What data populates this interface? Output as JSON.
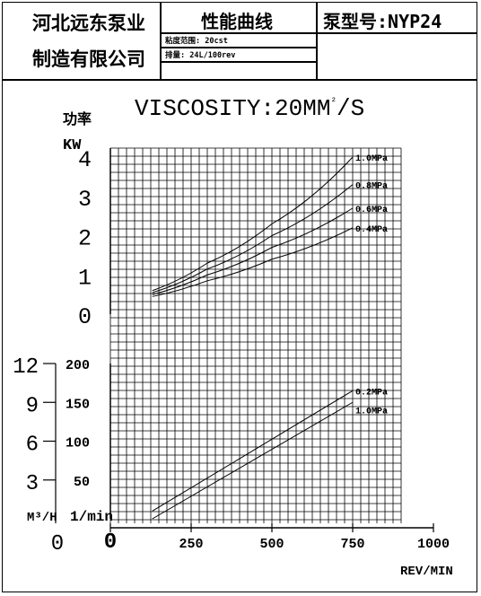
{
  "header": {
    "company_line1": "河北远东泵业",
    "company_line2": "制造有限公司",
    "chart_name": "性能曲线",
    "viscosity_range": "粘度范围: 20cst",
    "displacement": "排量: 24L/100rev",
    "model": "泵型号:NYP24"
  },
  "chart_data": {
    "type": "line",
    "title": "VISCOSITY:20MM²/S",
    "xlabel": "REV/MIN",
    "x_ticks": [
      "0",
      "250",
      "500",
      "750",
      "1000"
    ],
    "xlim": [
      0,
      1000
    ],
    "power": {
      "ylabel_cn": "功率",
      "ylabel_unit": "KW",
      "y_ticks": [
        "0",
        "1",
        "2",
        "3",
        "4"
      ],
      "ylim": [
        0,
        4
      ],
      "series": [
        {
          "name": "1.0MPa",
          "x": [
            130,
            300,
            500,
            750
          ],
          "y": [
            0.6,
            1.3,
            2.3,
            4.0
          ]
        },
        {
          "name": "0.8MPa",
          "x": [
            130,
            300,
            500,
            750
          ],
          "y": [
            0.55,
            1.15,
            2.0,
            3.3
          ]
        },
        {
          "name": "0.6MPa",
          "x": [
            130,
            300,
            500,
            750
          ],
          "y": [
            0.5,
            1.0,
            1.7,
            2.7
          ]
        },
        {
          "name": "0.4MPa",
          "x": [
            130,
            300,
            500,
            750
          ],
          "y": [
            0.45,
            0.85,
            1.4,
            2.2
          ]
        }
      ]
    },
    "flow": {
      "ylabel_left_unit": "M³/H",
      "ylabel_right_unit": "1/min",
      "m3h_ticks": [
        "0",
        "3",
        "6",
        "9",
        "12"
      ],
      "lmin_ticks": [
        "50",
        "100",
        "150",
        "200"
      ],
      "ylim_lmin": [
        0,
        200
      ],
      "series": [
        {
          "name": "0.2MPa",
          "x": [
            130,
            750
          ],
          "y": [
            10,
            165
          ]
        },
        {
          "name": "1.0MPa",
          "x": [
            130,
            750
          ],
          "y": [
            0,
            150
          ]
        }
      ]
    }
  }
}
